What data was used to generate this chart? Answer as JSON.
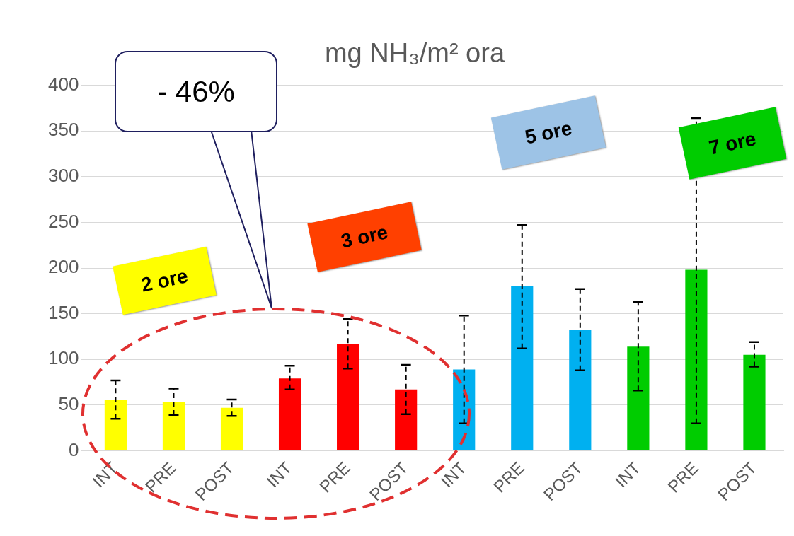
{
  "chart_data": {
    "type": "bar",
    "title": "mg NH₃/m² ora",
    "categories": [
      "INT",
      "PRE",
      "POST",
      "INT",
      "PRE",
      "POST",
      "INT",
      "PRE",
      "POST",
      "INT",
      "PRE",
      "POST"
    ],
    "values": [
      56,
      53,
      47,
      79,
      117,
      67,
      89,
      180,
      132,
      114,
      198,
      105
    ],
    "colors": [
      "#ffff00",
      "#ffff00",
      "#ffff00",
      "#ff0000",
      "#ff0000",
      "#ff0000",
      "#00b0f0",
      "#00b0f0",
      "#00b0f0",
      "#00cc00",
      "#00cc00",
      "#00cc00"
    ],
    "errors": [
      [
        35,
        77
      ],
      [
        39,
        68
      ],
      [
        38,
        56
      ],
      [
        67,
        93
      ],
      [
        90,
        144
      ],
      [
        40,
        94
      ],
      [
        30,
        148
      ],
      [
        112,
        247
      ],
      [
        88,
        177
      ],
      [
        66,
        163
      ],
      [
        30,
        364
      ],
      [
        92,
        119
      ]
    ],
    "ylim": [
      0,
      400
    ],
    "yticks": [
      0,
      50,
      100,
      150,
      200,
      250,
      300,
      350,
      400
    ],
    "grid": "y",
    "legend": false,
    "annotations": [
      "- 46%",
      "2 ore",
      "3 ore",
      "5 ore",
      "7 ore"
    ]
  }
}
